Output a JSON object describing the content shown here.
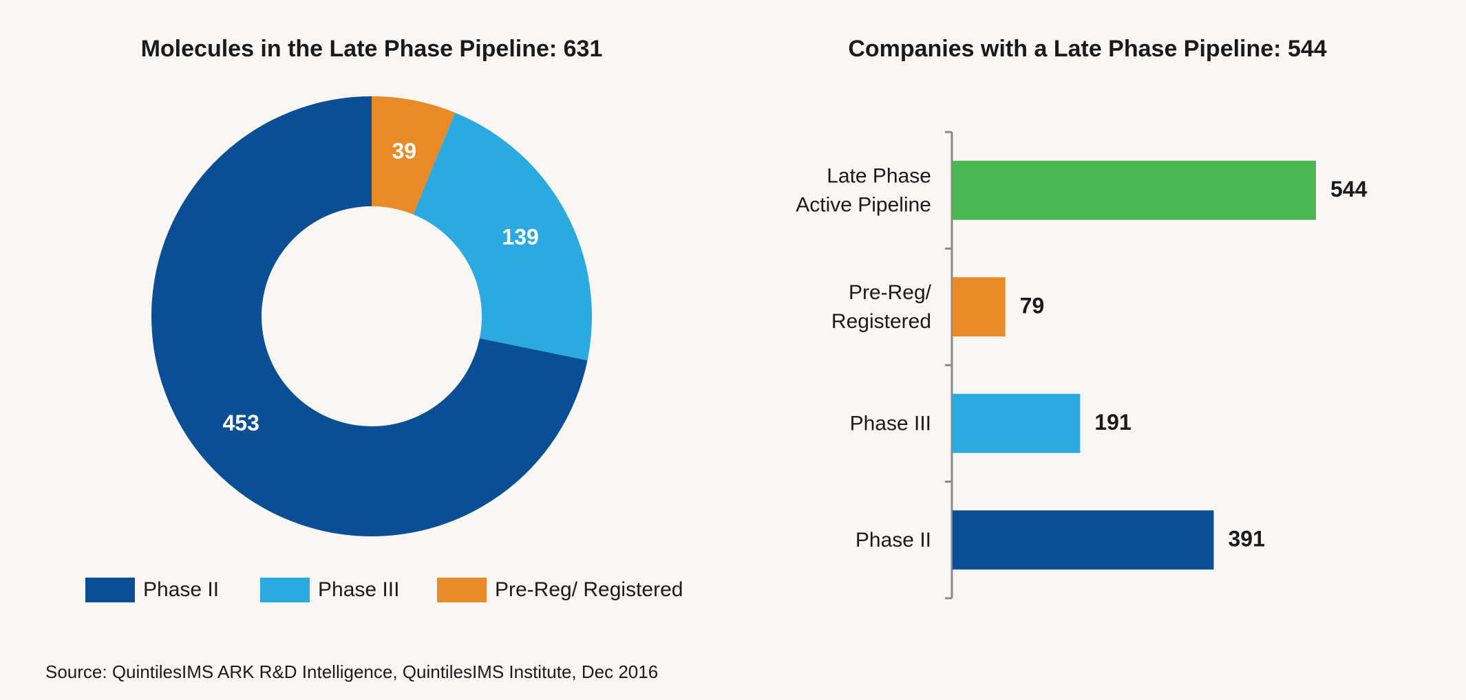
{
  "chart_data": [
    {
      "type": "pie",
      "title": "Molecules in the Late Phase Pipeline: 631",
      "variant": "donut",
      "categories": [
        "Pre-Reg/ Registered",
        "Phase III",
        "Phase II"
      ],
      "values": [
        39,
        139,
        453
      ],
      "colors": [
        "#ea8a26",
        "#2baae2",
        "#0a4e95"
      ],
      "data_labels": [
        "39",
        "139",
        "453"
      ],
      "legend": {
        "position": "bottom",
        "entries": [
          {
            "label": "Phase II",
            "color": "#0a4e95"
          },
          {
            "label": "Phase III",
            "color": "#2baae2"
          },
          {
            "label": "Pre-Reg/ Registered",
            "color": "#ea8a26"
          }
        ]
      }
    },
    {
      "type": "bar",
      "orientation": "horizontal",
      "title": "Companies with a Late Phase Pipeline: 544",
      "categories": [
        [
          "Late Phase",
          "Active Pipeline"
        ],
        [
          "Pre-Reg/",
          "Registered"
        ],
        [
          "Phase III"
        ],
        [
          "Phase II"
        ]
      ],
      "values": [
        544,
        79,
        191,
        391
      ],
      "colors": [
        "#4ab753",
        "#ea8a26",
        "#2baae2",
        "#0a4e95"
      ],
      "data_labels": [
        "544",
        "79",
        "191",
        "391"
      ],
      "xlim": [
        0,
        544
      ],
      "grid": false
    }
  ],
  "source": "Source: QuintilesIMS ARK R&D Intelligence, QuintilesIMS Institute, Dec 2016"
}
